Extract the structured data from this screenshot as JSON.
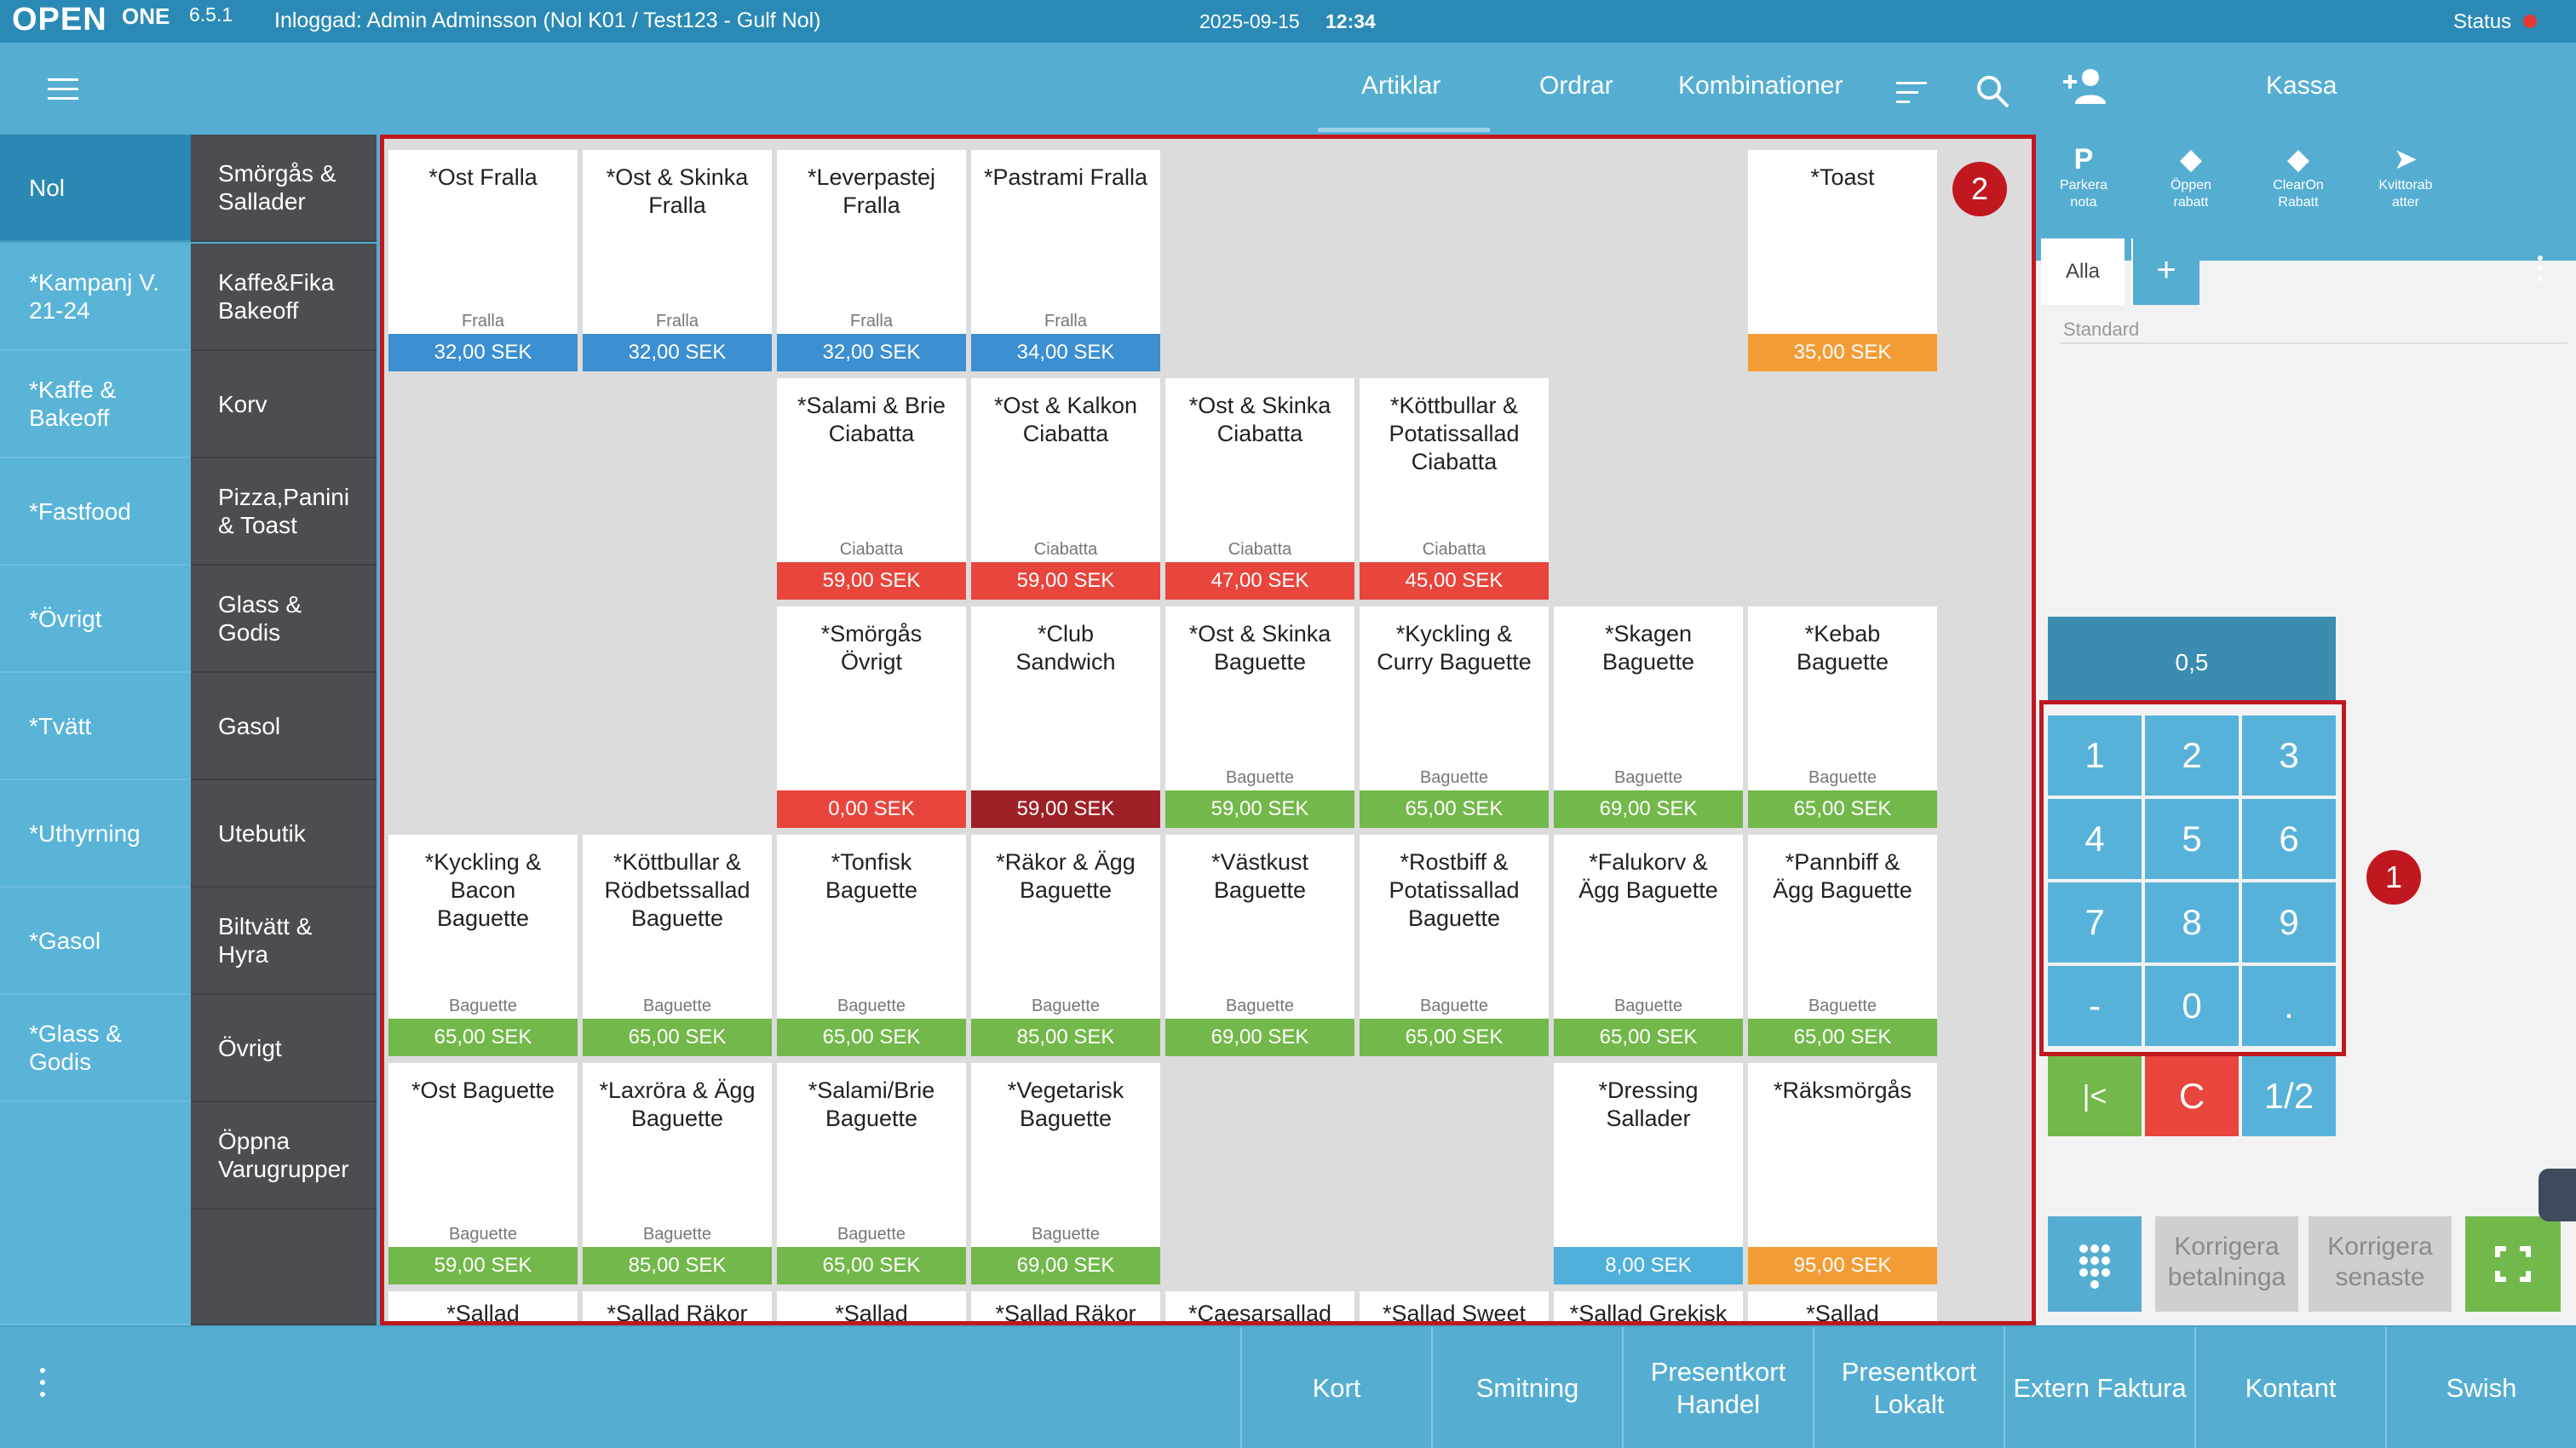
{
  "topbar": {
    "logo": "OPEN",
    "logo_sub": "ONE",
    "version": "6.5.1",
    "login": "Inloggad: Admin Adminsson (Nol K01 / Test123 - Gulf Nol)",
    "date": "2025-09-15",
    "time": "12:34",
    "status": "Status",
    "status_color": "#e53935"
  },
  "tabs": [
    {
      "label": "Artiklar",
      "active": true
    },
    {
      "label": "Ordrar",
      "active": false
    },
    {
      "label": "Kombinationer",
      "active": false
    }
  ],
  "categories_primary": [
    {
      "label": "Nol",
      "active": true
    },
    {
      "label": "*Kampanj V.\n21-24"
    },
    {
      "label": "*Kaffe &\nBakeoff"
    },
    {
      "label": "*Fastfood"
    },
    {
      "label": "*Övrigt"
    },
    {
      "label": "*Tvätt"
    },
    {
      "label": "*Uthyrning"
    },
    {
      "label": "*Gasol"
    },
    {
      "label": "*Glass &\nGodis"
    }
  ],
  "categories_secondary": [
    {
      "label": "Smörgås &\nSallader"
    },
    {
      "label": "Kaffe&Fika\nBakeoff"
    },
    {
      "label": "Korv"
    },
    {
      "label": "Pizza,Panini\n& Toast"
    },
    {
      "label": "Glass &\nGodis"
    },
    {
      "label": "Gasol"
    },
    {
      "label": "Utebutik"
    },
    {
      "label": "Biltvätt &\nHyra"
    },
    {
      "label": "Övrigt"
    },
    {
      "label": "Öppna\nVarugrupper"
    }
  ],
  "colors": {
    "blue": "#3c8fd0",
    "red": "#e8453c",
    "darkred": "#9e2027",
    "green": "#72b84a",
    "orange": "#f39c35",
    "lightblue": "#4fb0da"
  },
  "products": [
    {
      "row": 0,
      "col": 0,
      "name": "*Ost Fralla",
      "group": "Fralla",
      "price": "32,00 SEK",
      "color": "blue"
    },
    {
      "row": 0,
      "col": 1,
      "name": "*Ost & Skinka\nFralla",
      "group": "Fralla",
      "price": "32,00 SEK",
      "color": "blue"
    },
    {
      "row": 0,
      "col": 2,
      "name": "*Leverpastej\nFralla",
      "group": "Fralla",
      "price": "32,00 SEK",
      "color": "blue"
    },
    {
      "row": 0,
      "col": 3,
      "name": "*Pastrami Fralla",
      "group": "Fralla",
      "price": "34,00 SEK",
      "color": "blue"
    },
    {
      "row": 0,
      "col": 7,
      "name": "*Toast",
      "group": "",
      "price": "35,00 SEK",
      "color": "orange"
    },
    {
      "row": 1,
      "col": 2,
      "name": "*Salami & Brie\nCiabatta",
      "group": "Ciabatta",
      "price": "59,00 SEK",
      "color": "red"
    },
    {
      "row": 1,
      "col": 3,
      "name": "*Ost & Kalkon\nCiabatta",
      "group": "Ciabatta",
      "price": "59,00 SEK",
      "color": "red"
    },
    {
      "row": 1,
      "col": 4,
      "name": "*Ost & Skinka\nCiabatta",
      "group": "Ciabatta",
      "price": "47,00 SEK",
      "color": "red"
    },
    {
      "row": 1,
      "col": 5,
      "name": "*Köttbullar &\nPotatissallad\nCiabatta",
      "group": "Ciabatta",
      "price": "45,00 SEK",
      "color": "red"
    },
    {
      "row": 2,
      "col": 2,
      "name": "*Smörgås\nÖvrigt",
      "group": "",
      "price": "0,00 SEK",
      "color": "red"
    },
    {
      "row": 2,
      "col": 3,
      "name": "*Club\nSandwich",
      "group": "",
      "price": "59,00 SEK",
      "color": "darkred"
    },
    {
      "row": 2,
      "col": 4,
      "name": "*Ost & Skinka\nBaguette",
      "group": "Baguette",
      "price": "59,00 SEK",
      "color": "green"
    },
    {
      "row": 2,
      "col": 5,
      "name": "*Kyckling &\nCurry Baguette",
      "group": "Baguette",
      "price": "65,00 SEK",
      "color": "green"
    },
    {
      "row": 2,
      "col": 6,
      "name": "*Skagen\nBaguette",
      "group": "Baguette",
      "price": "69,00 SEK",
      "color": "green"
    },
    {
      "row": 2,
      "col": 7,
      "name": "*Kebab\nBaguette",
      "group": "Baguette",
      "price": "65,00 SEK",
      "color": "green"
    },
    {
      "row": 3,
      "col": 0,
      "name": "*Kyckling &\nBacon\nBaguette",
      "group": "Baguette",
      "price": "65,00 SEK",
      "color": "green"
    },
    {
      "row": 3,
      "col": 1,
      "name": "*Köttbullar &\nRödbetssallad\nBaguette",
      "group": "Baguette",
      "price": "65,00 SEK",
      "color": "green"
    },
    {
      "row": 3,
      "col": 2,
      "name": "*Tonfisk\nBaguette",
      "group": "Baguette",
      "price": "65,00 SEK",
      "color": "green"
    },
    {
      "row": 3,
      "col": 3,
      "name": "*Räkor & Ägg\nBaguette",
      "group": "Baguette",
      "price": "85,00 SEK",
      "color": "green"
    },
    {
      "row": 3,
      "col": 4,
      "name": "*Västkust\nBaguette",
      "group": "Baguette",
      "price": "69,00 SEK",
      "color": "green"
    },
    {
      "row": 3,
      "col": 5,
      "name": "*Rostbiff &\nPotatissallad\nBaguette",
      "group": "Baguette",
      "price": "65,00 SEK",
      "color": "green"
    },
    {
      "row": 3,
      "col": 6,
      "name": "*Falukorv &\nÄgg Baguette",
      "group": "Baguette",
      "price": "65,00 SEK",
      "color": "green"
    },
    {
      "row": 3,
      "col": 7,
      "name": "*Pannbiff &\nÄgg Baguette",
      "group": "Baguette",
      "price": "65,00 SEK",
      "color": "green"
    },
    {
      "row": 4,
      "col": 0,
      "name": "*Ost Baguette",
      "group": "Baguette",
      "price": "59,00 SEK",
      "color": "green"
    },
    {
      "row": 4,
      "col": 1,
      "name": "*Laxröra & Ägg\nBaguette",
      "group": "Baguette",
      "price": "85,00 SEK",
      "color": "green"
    },
    {
      "row": 4,
      "col": 2,
      "name": "*Salami/Brie\nBaguette",
      "group": "Baguette",
      "price": "65,00 SEK",
      "color": "green"
    },
    {
      "row": 4,
      "col": 3,
      "name": "*Vegetarisk\nBaguette",
      "group": "Baguette",
      "price": "69,00 SEK",
      "color": "green"
    },
    {
      "row": 4,
      "col": 6,
      "name": "*Dressing\nSallader",
      "group": "",
      "price": "8,00 SEK",
      "color": "lightblue"
    },
    {
      "row": 4,
      "col": 7,
      "name": "*Räksmörgås",
      "group": "",
      "price": "95,00 SEK",
      "color": "orange"
    },
    {
      "row": 5,
      "col": 0,
      "name": "*Sallad",
      "short": true
    },
    {
      "row": 5,
      "col": 1,
      "name": "*Sallad Räkor",
      "short": true
    },
    {
      "row": 5,
      "col": 2,
      "name": "*Sallad",
      "short": true
    },
    {
      "row": 5,
      "col": 3,
      "name": "*Sallad Räkor",
      "short": true
    },
    {
      "row": 5,
      "col": 4,
      "name": "*Caesarsallad",
      "short": true
    },
    {
      "row": 5,
      "col": 5,
      "name": "*Sallad Sweet",
      "short": true
    },
    {
      "row": 5,
      "col": 6,
      "name": "*Sallad Grekisk",
      "short": true
    },
    {
      "row": 5,
      "col": 7,
      "name": "*Sallad",
      "short": true
    }
  ],
  "badges": {
    "grid": "2",
    "numpad": "1"
  },
  "kassa": {
    "title": "Kassa",
    "actions": [
      {
        "icon": "P",
        "label": "Parkera\nnota"
      },
      {
        "icon": "◆",
        "label": "Öppen\nrabatt"
      },
      {
        "icon": "◆",
        "label": "ClearOn\nRabatt"
      },
      {
        "icon": "➤",
        "label": "Kvittorab\natter"
      }
    ],
    "tab_all": "Alla",
    "tab_add": "+",
    "price_list": "Standard"
  },
  "numpad": {
    "quantity": "0,5",
    "keys": [
      "1",
      "2",
      "3",
      "4",
      "5",
      "6",
      "7",
      "8",
      "9",
      "-",
      "0",
      "."
    ],
    "first": "|<",
    "clear": "C",
    "half": "1/2"
  },
  "correct": {
    "payment": "Korrigera\nbetalninga",
    "latest": "Korrigera\nsenaste"
  },
  "payments": [
    "Kort",
    "Smitning",
    "Presentkort\nHandel",
    "Presentkort\nLokalt",
    "Extern Faktura",
    "Kontant",
    "Swish"
  ]
}
